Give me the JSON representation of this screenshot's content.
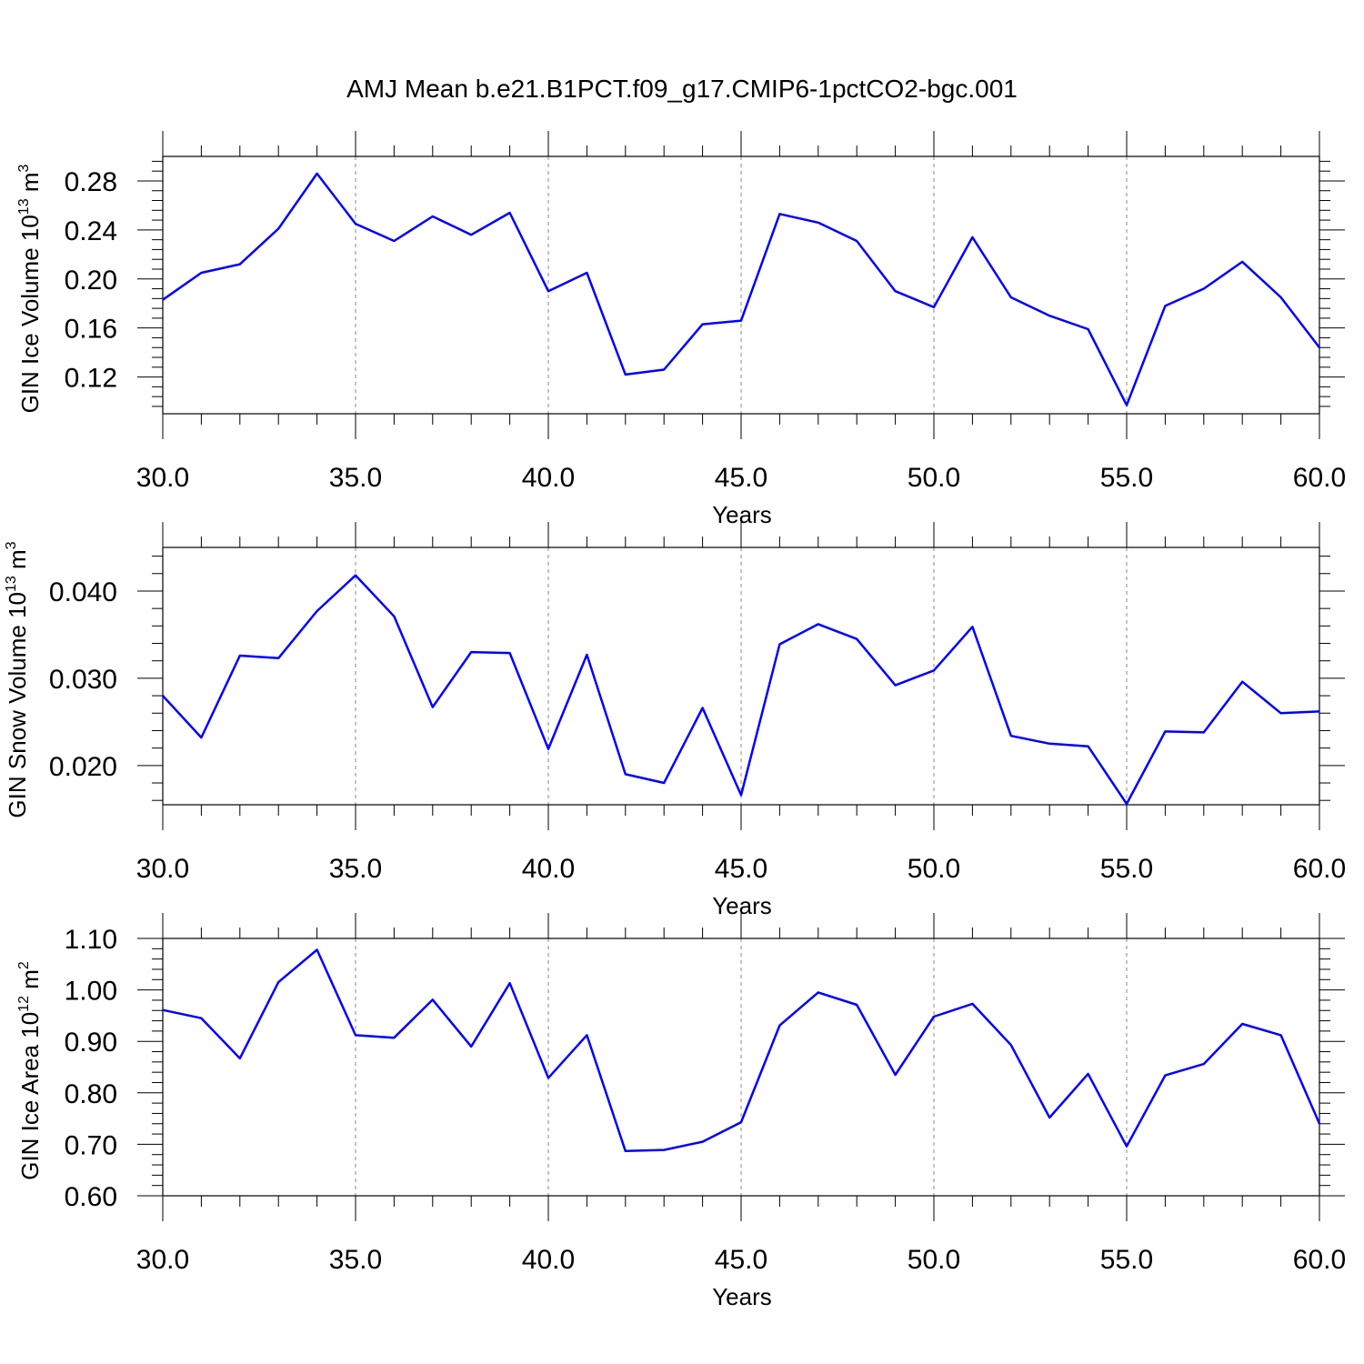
{
  "title": "AMJ Mean b.e21.B1PCT.f09_g17.CMIP6-1pctCO2-bgc.001",
  "line_color": "#0000ff",
  "chart_data": [
    {
      "type": "line",
      "ylabel": "GIN Ice Volume 10",
      "ylabel_exp": "13",
      "ylabel_unit": "m",
      "ylabel_unit_exp": "3",
      "xlabel": "Years",
      "xlim": [
        30,
        60
      ],
      "ylim": [
        0.09,
        0.3
      ],
      "x_ticks": [
        "30.0",
        "35.0",
        "40.0",
        "45.0",
        "50.0",
        "55.0",
        "60.0"
      ],
      "y_ticks": [
        "0.12",
        "0.16",
        "0.20",
        "0.24",
        "0.28"
      ],
      "grid": "dashed vertical at major x ticks",
      "x": [
        30,
        31,
        32,
        33,
        34,
        35,
        36,
        37,
        38,
        39,
        40,
        41,
        42,
        43,
        44,
        45,
        46,
        47,
        48,
        49,
        50,
        51,
        52,
        53,
        54,
        55,
        56,
        57,
        58,
        59,
        60
      ],
      "y": [
        0.183,
        0.205,
        0.212,
        0.241,
        0.286,
        0.245,
        0.231,
        0.251,
        0.236,
        0.254,
        0.19,
        0.205,
        0.122,
        0.126,
        0.163,
        0.166,
        0.253,
        0.246,
        0.231,
        0.19,
        0.177,
        0.234,
        0.185,
        0.17,
        0.159,
        0.097,
        0.178,
        0.192,
        0.214,
        0.185,
        0.144
      ]
    },
    {
      "type": "line",
      "ylabel": "GIN Snow Volume 10",
      "ylabel_exp": "13",
      "ylabel_unit": "m",
      "ylabel_unit_exp": "3",
      "xlabel": "Years",
      "xlim": [
        30,
        60
      ],
      "ylim": [
        0.0155,
        0.045
      ],
      "x_ticks": [
        "30.0",
        "35.0",
        "40.0",
        "45.0",
        "50.0",
        "55.0",
        "60.0"
      ],
      "y_ticks": [
        "0.020",
        "0.030",
        "0.040"
      ],
      "grid": "dashed vertical at major x ticks",
      "x": [
        30,
        31,
        32,
        33,
        34,
        35,
        36,
        37,
        38,
        39,
        40,
        41,
        42,
        43,
        44,
        45,
        46,
        47,
        48,
        49,
        50,
        51,
        52,
        53,
        54,
        55,
        56,
        57,
        58,
        59,
        60
      ],
      "y": [
        0.028,
        0.0232,
        0.0326,
        0.0323,
        0.0377,
        0.0418,
        0.0371,
        0.0267,
        0.033,
        0.0329,
        0.0219,
        0.0327,
        0.019,
        0.018,
        0.0266,
        0.0166,
        0.0339,
        0.0362,
        0.0345,
        0.0292,
        0.0309,
        0.0359,
        0.0234,
        0.0225,
        0.0222,
        0.0156,
        0.0239,
        0.0238,
        0.0296,
        0.026,
        0.0262
      ]
    },
    {
      "type": "line",
      "ylabel": "GIN Ice Area 10",
      "ylabel_exp": "12",
      "ylabel_unit": "m",
      "ylabel_unit_exp": "2",
      "xlabel": "Years",
      "xlim": [
        30,
        60
      ],
      "ylim": [
        0.6,
        1.1
      ],
      "x_ticks": [
        "30.0",
        "35.0",
        "40.0",
        "45.0",
        "50.0",
        "55.0",
        "60.0"
      ],
      "y_ticks": [
        "0.60",
        "0.70",
        "0.80",
        "0.90",
        "1.00",
        "1.10"
      ],
      "grid": "dashed vertical at major x ticks",
      "x": [
        30,
        31,
        32,
        33,
        34,
        35,
        36,
        37,
        38,
        39,
        40,
        41,
        42,
        43,
        44,
        45,
        46,
        47,
        48,
        49,
        50,
        51,
        52,
        53,
        54,
        55,
        56,
        57,
        58,
        59,
        60
      ],
      "y": [
        0.961,
        0.945,
        0.867,
        1.015,
        1.078,
        0.912,
        0.907,
        0.981,
        0.89,
        1.013,
        0.829,
        0.912,
        0.687,
        0.689,
        0.705,
        0.743,
        0.931,
        0.995,
        0.971,
        0.835,
        0.948,
        0.973,
        0.893,
        0.752,
        0.837,
        0.696,
        0.834,
        0.856,
        0.934,
        0.912,
        0.74
      ]
    }
  ]
}
